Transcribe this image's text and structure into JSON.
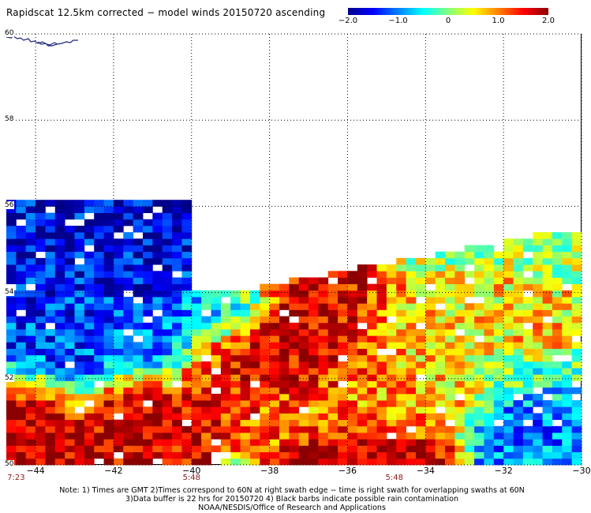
{
  "title": "Rapidscat 12.5km corrected − model winds 20150720 ascending",
  "colorbar": {
    "tick_labels": [
      "−2.0",
      "−1.0",
      "0",
      "1.0",
      "2.0"
    ],
    "tick_values": [
      -2.0,
      -1.0,
      0,
      1.0,
      2.0
    ],
    "range": [
      -2.0,
      2.0
    ],
    "colors": [
      "#00008b",
      "#0000ff",
      "#0080ff",
      "#00ffff",
      "#80ff80",
      "#ffff00",
      "#ff8000",
      "#ff0000",
      "#8b0000"
    ]
  },
  "axes": {
    "lat_labels": [
      "60",
      "58",
      "56",
      "54",
      "52",
      "50"
    ],
    "lat_values": [
      60,
      58,
      56,
      54,
      52,
      50
    ],
    "lon_labels": [
      "−44",
      "−42",
      "−40",
      "−38",
      "−36",
      "−34",
      "−32",
      "−30"
    ],
    "lon_values": [
      -44,
      -42,
      -40,
      -38,
      -36,
      -34,
      -32,
      -30
    ],
    "lon_range": [
      -44.75,
      -30
    ],
    "lat_range": [
      50,
      60
    ],
    "grid": "dotted"
  },
  "times": [
    {
      "label": "7:23",
      "lon": -44.5
    },
    {
      "label": "5:48",
      "lon": -40
    },
    {
      "label": "5:48",
      "lon": -34.8
    }
  ],
  "notes": [
    "Note: 1) Times are GMT 2)Times correspond to 60N at right swath edge − time is right swath for overlapping swaths at 60N",
    "3)Data buffer is 22 hrs for 20150720 4) Black barbs indicate possible rain contamination",
    "NOAA/NESDIS/Office of Research and Applications"
  ],
  "chart_data": {
    "type": "heatmap",
    "title": "Rapidscat 12.5km corrected − model winds 20150720 ascending",
    "variable_range": [
      -2.0,
      2.0
    ],
    "regions": [
      {
        "lon": [
          -44.75,
          -40
        ],
        "lat": [
          54,
          56.1
        ],
        "mean": -1.6
      },
      {
        "lon": [
          -44.75,
          -42
        ],
        "lat": [
          52,
          54
        ],
        "mean": -1.3
      },
      {
        "lon": [
          -42,
          -40
        ],
        "lat": [
          52.3,
          54
        ],
        "mean": -1.1
      },
      {
        "lon": [
          -40,
          -38.5
        ],
        "lat": [
          53.2,
          54
        ],
        "mean": -0.6
      },
      {
        "lon": [
          -44.75,
          -43.5
        ],
        "lat": [
          50,
          51.8
        ],
        "mean": 1.9
      },
      {
        "lon": [
          -42.5,
          -40.5
        ],
        "lat": [
          50,
          51.8
        ],
        "mean": 1.7
      },
      {
        "lon": [
          -40,
          -38.5
        ],
        "lat": [
          51.3,
          52.8
        ],
        "mean": 1.5
      },
      {
        "lon": [
          -38.5,
          -35.5
        ],
        "lat": [
          51.8,
          53.8
        ],
        "mean": 1.8
      },
      {
        "lon": [
          -36.8,
          -34.5
        ],
        "lat": [
          50,
          50.8
        ],
        "mean": 1.7
      },
      {
        "lon": [
          -38,
          -34
        ],
        "lat": [
          50.8,
          52
        ],
        "mean": 0.9
      },
      {
        "lon": [
          -35.5,
          -31
        ],
        "lat": [
          52,
          53.6
        ],
        "mean": 0.6
      },
      {
        "lon": [
          -32,
          -30
        ],
        "lat": [
          51.8,
          52.8
        ],
        "mean": -0.5
      },
      {
        "lon": [
          -32,
          -30
        ],
        "lat": [
          50.3,
          51.5
        ],
        "mean": -1.0
      },
      {
        "lon": [
          -31.5,
          -30.5
        ],
        "lat": [
          52.6,
          53
        ],
        "mean": 1.4
      }
    ]
  }
}
